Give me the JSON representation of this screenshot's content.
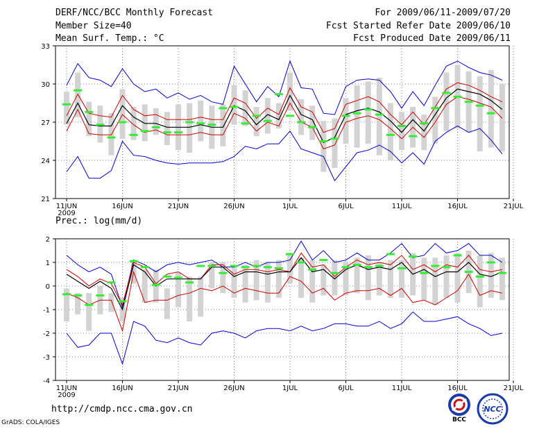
{
  "header": {
    "title": "DERF/NCC/BCC Monthly Forecast",
    "member_size": "Member Size=40",
    "variable": "Mean Surf. Temp.: °C",
    "period": "For 2009/06/11-2009/07/20",
    "start_ref": "Fcst Started Refer Date 2009/06/10",
    "produced": "Fcst Produced Date 2009/06/11"
  },
  "footer": {
    "url": "http://cmdp.ncc.cma.gov.cn",
    "grads": "GrADS: COLA/IGES",
    "logo_bcc": "BCC",
    "logo_ncc": "NCC"
  },
  "colors": {
    "envelope": "#0000cc",
    "spread": "#cc0000",
    "mean": "#000000",
    "member_box": "#d3d3d3",
    "obs_dash": "#33ee33"
  },
  "chart_data": [
    {
      "type": "line",
      "title": "Mean Surf. Temp.: °C",
      "x_tick_labels": [
        "11JUN",
        "16JUN",
        "21JUN",
        "26JUN",
        "1JUL",
        "6JUL",
        "11JUL",
        "16JUL",
        "21JUL"
      ],
      "x_year_label": "2009",
      "ylim": [
        21,
        33
      ],
      "y_ticks": [
        21,
        24,
        27,
        30,
        33
      ],
      "days": 40,
      "series": [
        {
          "name": "max",
          "values": [
            23.1,
            24.3,
            22.6,
            22.6,
            23.2,
            25.5,
            24.4,
            24.3,
            24.0,
            23.8,
            23.7,
            23.8,
            23.8,
            23.8,
            23.9,
            24.3,
            25.1,
            24.9,
            25.3,
            25.3,
            26.3,
            24.9,
            24.6,
            24.3,
            22.4,
            23.5,
            24.6,
            24.8,
            25.2,
            24.7,
            23.8,
            24.6,
            23.7,
            25.5,
            26.2,
            26.7,
            26.2,
            26.5,
            25.6,
            24.5
          ]
        },
        {
          "name": "max_env",
          "values": [
            29.9,
            31.6,
            30.5,
            30.3,
            29.8,
            31.2,
            30.0,
            29.4,
            29.6,
            28.9,
            29.3,
            28.8,
            29.1,
            28.6,
            28.4,
            31.4,
            30.0,
            28.6,
            29.8,
            29.0,
            31.8,
            29.7,
            29.6,
            27.7,
            27.6,
            29.8,
            30.3,
            30.4,
            30.3,
            29.4,
            28.1,
            29.4,
            28.3,
            29.9,
            31.4,
            31.8,
            31.3,
            30.9,
            30.7,
            30.3
          ]
        },
        {
          "name": "spread_high",
          "values": [
            27.5,
            29.2,
            27.7,
            27.5,
            27.4,
            29.1,
            28.0,
            27.5,
            27.6,
            27.2,
            27.2,
            27.2,
            27.4,
            27.2,
            27.2,
            28.9,
            28.5,
            27.3,
            28.1,
            27.6,
            29.7,
            28.2,
            27.8,
            26.2,
            26.5,
            28.4,
            28.7,
            29.0,
            28.6,
            27.6,
            26.8,
            27.8,
            26.8,
            28.2,
            29.6,
            30.1,
            29.9,
            29.5,
            29.0,
            28.6
          ]
        },
        {
          "name": "mean",
          "values": [
            26.9,
            28.5,
            26.8,
            26.7,
            26.7,
            28.3,
            27.4,
            26.9,
            26.9,
            26.6,
            26.6,
            26.6,
            26.8,
            26.6,
            26.6,
            28.3,
            27.9,
            26.8,
            27.6,
            27.2,
            29.1,
            27.6,
            27.2,
            25.4,
            25.8,
            27.6,
            27.9,
            28.1,
            27.8,
            27.1,
            26.2,
            27.2,
            26.3,
            27.6,
            28.9,
            29.6,
            29.4,
            29.2,
            28.7,
            28.0
          ]
        },
        {
          "name": "spread_low",
          "values": [
            26.3,
            28.0,
            26.1,
            26.0,
            26.0,
            27.6,
            26.8,
            26.2,
            26.4,
            26.0,
            26.0,
            26.0,
            26.2,
            26.0,
            26.0,
            27.7,
            27.3,
            26.3,
            27.0,
            26.7,
            28.5,
            27.0,
            26.6,
            24.9,
            25.2,
            27.0,
            27.3,
            27.5,
            27.2,
            26.5,
            25.7,
            26.6,
            25.8,
            27.0,
            28.4,
            29.0,
            28.8,
            28.5,
            28.2,
            27.3
          ]
        },
        {
          "name": "min",
          "values": [
            23.1,
            24.3,
            22.6,
            22.6,
            23.2,
            25.5,
            24.4,
            24.3,
            24.0,
            23.8,
            23.7,
            23.8,
            23.8,
            23.8,
            23.9,
            24.3,
            25.1,
            24.9,
            25.3,
            25.3,
            26.3,
            24.9,
            24.6,
            24.3,
            22.4,
            23.5,
            24.6,
            24.8,
            25.2,
            24.7,
            23.8,
            24.6,
            23.7,
            25.5,
            26.2,
            26.7,
            26.2,
            26.5,
            25.6,
            24.5
          ]
        }
      ],
      "boxes": [
        [
          26.8,
          29.4
        ],
        [
          27.4,
          30.9
        ],
        [
          25.9,
          28.6
        ],
        [
          25.4,
          28.3
        ],
        [
          24.4,
          27.7
        ],
        [
          25.7,
          29.6
        ],
        [
          25.6,
          28.2
        ],
        [
          25.5,
          28.4
        ],
        [
          26.0,
          28.1
        ],
        [
          25.2,
          27.8
        ],
        [
          24.8,
          28.4
        ],
        [
          24.6,
          28.5
        ],
        [
          25.5,
          28.7
        ],
        [
          24.9,
          28.3
        ],
        [
          25.1,
          28.4
        ],
        [
          26.8,
          29.9
        ],
        [
          26.7,
          29.5
        ],
        [
          25.9,
          28.2
        ],
        [
          26.1,
          28.9
        ],
        [
          26.5,
          28.5
        ],
        [
          27.9,
          30.9
        ],
        [
          26.0,
          28.8
        ],
        [
          25.6,
          28.3
        ],
        [
          23.1,
          27.1
        ],
        [
          23.4,
          27.3
        ],
        [
          25.3,
          28.9
        ],
        [
          25.0,
          29.9
        ],
        [
          25.3,
          30.2
        ],
        [
          24.4,
          30.5
        ],
        [
          24.0,
          28.5
        ],
        [
          24.8,
          27.8
        ],
        [
          25.0,
          28.2
        ],
        [
          24.8,
          27.6
        ],
        [
          25.3,
          29.0
        ],
        [
          26.3,
          30.9
        ],
        [
          26.5,
          31.5
        ],
        [
          26.2,
          31.0
        ],
        [
          24.7,
          30.6
        ],
        [
          25.0,
          31.1
        ],
        [
          24.7,
          30.0
        ]
      ],
      "obs": [
        28.4,
        29.5,
        27.8,
        26.8,
        25.8,
        27.0,
        26.0,
        26.3,
        26.6,
        26.2,
        26.2,
        27.0,
        26.9,
        26.8,
        28.1,
        28.2,
        26.9,
        27.5,
        27.1,
        29.2,
        27.5,
        27.0,
        26.6,
        25.5,
        25.7,
        27.5,
        27.7,
        28.0,
        27.6,
        26.0,
        26.7,
        25.9,
        26.9,
        28.1,
        29.3,
        29.0,
        28.6,
        28.3,
        27.7,
        null
      ]
    },
    {
      "type": "line",
      "title": "Prec.: log(mm/d)",
      "x_tick_labels": [
        "11JUN",
        "16JUN",
        "21JUN",
        "26JUN",
        "1JUL",
        "6JUL",
        "11JUL",
        "16JUL",
        "21JUL"
      ],
      "x_year_label": "2009",
      "ylim": [
        -4,
        2
      ],
      "y_ticks": [
        -4,
        -3,
        -2,
        -1,
        0,
        1,
        2
      ],
      "days": 40,
      "series": [
        {
          "name": "max_env",
          "values": [
            1.3,
            0.9,
            0.6,
            0.8,
            0.5,
            -0.9,
            1.1,
            0.9,
            0.6,
            0.9,
            1.0,
            0.9,
            1.0,
            1.1,
            0.8,
            0.8,
            1.0,
            0.8,
            1.0,
            1.0,
            1.1,
            1.9,
            1.1,
            1.5,
            1.0,
            1.1,
            1.4,
            1.1,
            1.1,
            1.4,
            1.8,
            1.2,
            1.3,
            1.8,
            1.4,
            1.5,
            1.8,
            1.3,
            1.3,
            1.0
          ]
        },
        {
          "name": "spread_high",
          "values": [
            0.7,
            0.4,
            0.0,
            0.3,
            0.1,
            -0.8,
            1.0,
            0.8,
            0.1,
            0.5,
            0.6,
            0.3,
            0.3,
            0.9,
            0.9,
            0.5,
            0.7,
            0.7,
            0.6,
            0.7,
            0.6,
            1.4,
            0.8,
            0.9,
            0.4,
            0.8,
            1.1,
            0.9,
            1.0,
            0.9,
            1.3,
            0.7,
            0.9,
            0.6,
            0.9,
            0.8,
            1.3,
            0.7,
            0.6,
            0.7
          ]
        },
        {
          "name": "mean",
          "values": [
            0.5,
            0.2,
            -0.1,
            0.2,
            -0.1,
            -1.0,
            0.9,
            0.6,
            0.0,
            0.3,
            0.3,
            0.3,
            0.3,
            0.8,
            0.8,
            0.4,
            0.6,
            0.6,
            0.5,
            0.6,
            0.6,
            1.2,
            0.6,
            0.7,
            0.3,
            0.7,
            0.9,
            0.7,
            0.8,
            0.7,
            1.0,
            0.5,
            0.7,
            0.4,
            0.6,
            0.6,
            1.0,
            0.5,
            0.4,
            0.6
          ]
        },
        {
          "name": "spread_low",
          "values": [
            -0.3,
            -0.5,
            -0.8,
            -0.6,
            -0.6,
            -1.9,
            0.6,
            -0.7,
            -0.6,
            -0.6,
            -0.4,
            -0.3,
            -0.1,
            -0.2,
            0.0,
            -0.3,
            -0.1,
            -0.2,
            -0.3,
            -0.3,
            0.4,
            0.2,
            -0.3,
            -0.1,
            -0.6,
            -0.3,
            -0.2,
            -0.2,
            -0.1,
            -0.4,
            -0.1,
            -0.7,
            -0.6,
            -0.8,
            -0.5,
            -0.2,
            0.5,
            -0.4,
            -0.2,
            -0.3
          ]
        },
        {
          "name": "min",
          "values": [
            -2.0,
            -2.6,
            -2.5,
            -2.0,
            -2.0,
            -3.3,
            -1.5,
            -1.7,
            -2.3,
            -2.4,
            -2.2,
            -2.4,
            -2.5,
            -2.0,
            -1.9,
            -2.0,
            -2.2,
            -1.9,
            -1.8,
            -1.8,
            -1.9,
            -1.7,
            -1.9,
            -1.8,
            -1.6,
            -1.6,
            -1.7,
            -1.7,
            -1.5,
            -1.8,
            -1.6,
            -1.1,
            -1.5,
            -1.5,
            -1.4,
            -1.3,
            -1.6,
            -1.8,
            -2.1,
            -2.0
          ]
        }
      ],
      "boxes": [
        [
          -1.5,
          -0.1
        ],
        [
          -1.2,
          -0.3
        ],
        [
          -1.9,
          -0.3
        ],
        [
          -1.2,
          0.0
        ],
        [
          -1.1,
          -0.3
        ],
        [
          -1.5,
          -0.5
        ],
        [
          0.1,
          1.0
        ],
        [
          -0.7,
          0.7
        ],
        [
          -0.7,
          0.7
        ],
        [
          -1.4,
          -0.1
        ],
        [
          -0.9,
          0.6
        ],
        [
          -1.5,
          0.4
        ],
        [
          -1.3,
          0.4
        ],
        [
          -0.1,
          1.0
        ],
        [
          -0.3,
          1.0
        ],
        [
          -0.5,
          0.8
        ],
        [
          -0.7,
          0.9
        ],
        [
          -0.6,
          1.1
        ],
        [
          -0.7,
          1.0
        ],
        [
          -0.5,
          1.1
        ],
        [
          0.1,
          1.4
        ],
        [
          -0.5,
          1.2
        ],
        [
          -0.7,
          1.1
        ],
        [
          -0.4,
          0.9
        ],
        [
          -0.4,
          1.1
        ],
        [
          -0.4,
          1.0
        ],
        [
          -0.3,
          1.2
        ],
        [
          -0.6,
          1.3
        ],
        [
          -0.4,
          1.0
        ],
        [
          -0.5,
          1.1
        ],
        [
          -0.5,
          1.1
        ],
        [
          -0.4,
          1.4
        ],
        [
          -0.6,
          1.2
        ],
        [
          -0.8,
          1.2
        ],
        [
          -0.5,
          1.3
        ],
        [
          -0.7,
          1.4
        ],
        [
          -0.3,
          1.5
        ],
        [
          -0.9,
          1.3
        ],
        [
          -0.5,
          1.4
        ],
        [
          -0.6,
          1.2
        ]
      ],
      "obs": [
        -0.35,
        -0.4,
        -0.8,
        -0.4,
        0.15,
        -0.65,
        1.05,
        0.8,
        0.05,
        0.4,
        0.35,
        0.15,
        0.85,
        0.85,
        0.55,
        0.85,
        0.8,
        0.85,
        0.8,
        0.75,
        1.35,
        1.0,
        0.7,
        1.1,
        0.55,
        0.8,
        0.9,
        0.8,
        0.85,
        1.35,
        0.75,
        1.25,
        0.55,
        0.85,
        0.8,
        1.3,
        0.6,
        0.4,
        1.0,
        0.55
      ]
    }
  ]
}
